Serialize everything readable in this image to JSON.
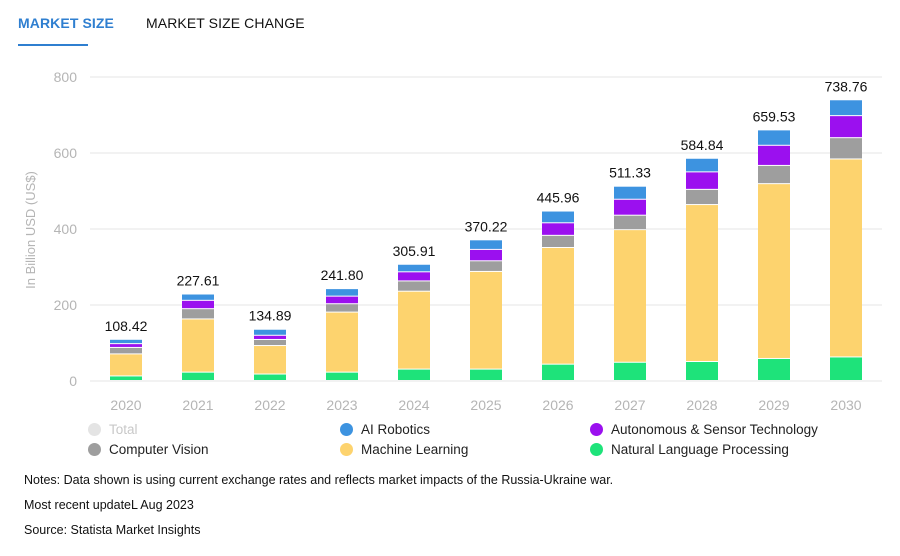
{
  "tabs": {
    "market_size": "MARKET SIZE",
    "market_size_change": "MARKET SIZE CHANGE"
  },
  "chart_data": {
    "type": "bar",
    "stacked": true,
    "categories": [
      "2020",
      "2021",
      "2022",
      "2023",
      "2024",
      "2025",
      "2026",
      "2027",
      "2028",
      "2029",
      "2030"
    ],
    "ylabel": "In Billion USD (US$)",
    "ylim": [
      0,
      800
    ],
    "yticks": [
      0,
      200,
      400,
      600,
      800
    ],
    "totals": [
      "108.42",
      "227.61",
      "134.89",
      "241.80",
      "305.91",
      "370.22",
      "445.96",
      "511.33",
      "584.84",
      "659.53",
      "738.76"
    ],
    "series": [
      {
        "name": "Natural Language Processing",
        "color": "#1ee37a",
        "values": [
          12,
          22,
          17,
          22,
          30,
          30,
          43,
          48,
          50,
          58,
          62
        ]
      },
      {
        "name": "Machine Learning",
        "color": "#fdd36e",
        "values": [
          58,
          140,
          75,
          158,
          205,
          257,
          307,
          349,
          413,
          460,
          521
        ]
      },
      {
        "name": "Computer Vision",
        "color": "#9e9e9e",
        "values": [
          17,
          27,
          16,
          22,
          27,
          28,
          32,
          38,
          40,
          48,
          56
        ]
      },
      {
        "name": "Autonomous & Sensor Technology",
        "color": "#9b10ef",
        "values": [
          10,
          22,
          11,
          20,
          24,
          30,
          33,
          42,
          46,
          53,
          58
        ]
      },
      {
        "name": "AI Robotics",
        "color": "#3d93e0",
        "values": [
          11.42,
          16.61,
          15.89,
          19.8,
          19.91,
          25.22,
          30.96,
          34.33,
          35.84,
          40.53,
          41.76
        ]
      }
    ],
    "legend": [
      {
        "label": "Total",
        "color": "#e4e4e4",
        "disabled": true
      },
      {
        "label": "AI Robotics",
        "color": "#3d93e0"
      },
      {
        "label": "Autonomous & Sensor Technology",
        "color": "#9b10ef"
      },
      {
        "label": "Computer Vision",
        "color": "#9e9e9e"
      },
      {
        "label": "Machine Learning",
        "color": "#fdd36e"
      },
      {
        "label": "Natural Language Processing",
        "color": "#1ee37a"
      }
    ]
  },
  "notes": {
    "note": "Notes: Data shown is using current exchange rates and reflects market impacts of the Russia-Ukraine war.",
    "update": "Most recent updateL Aug 2023",
    "source": "Source: Statista Market Insights"
  }
}
